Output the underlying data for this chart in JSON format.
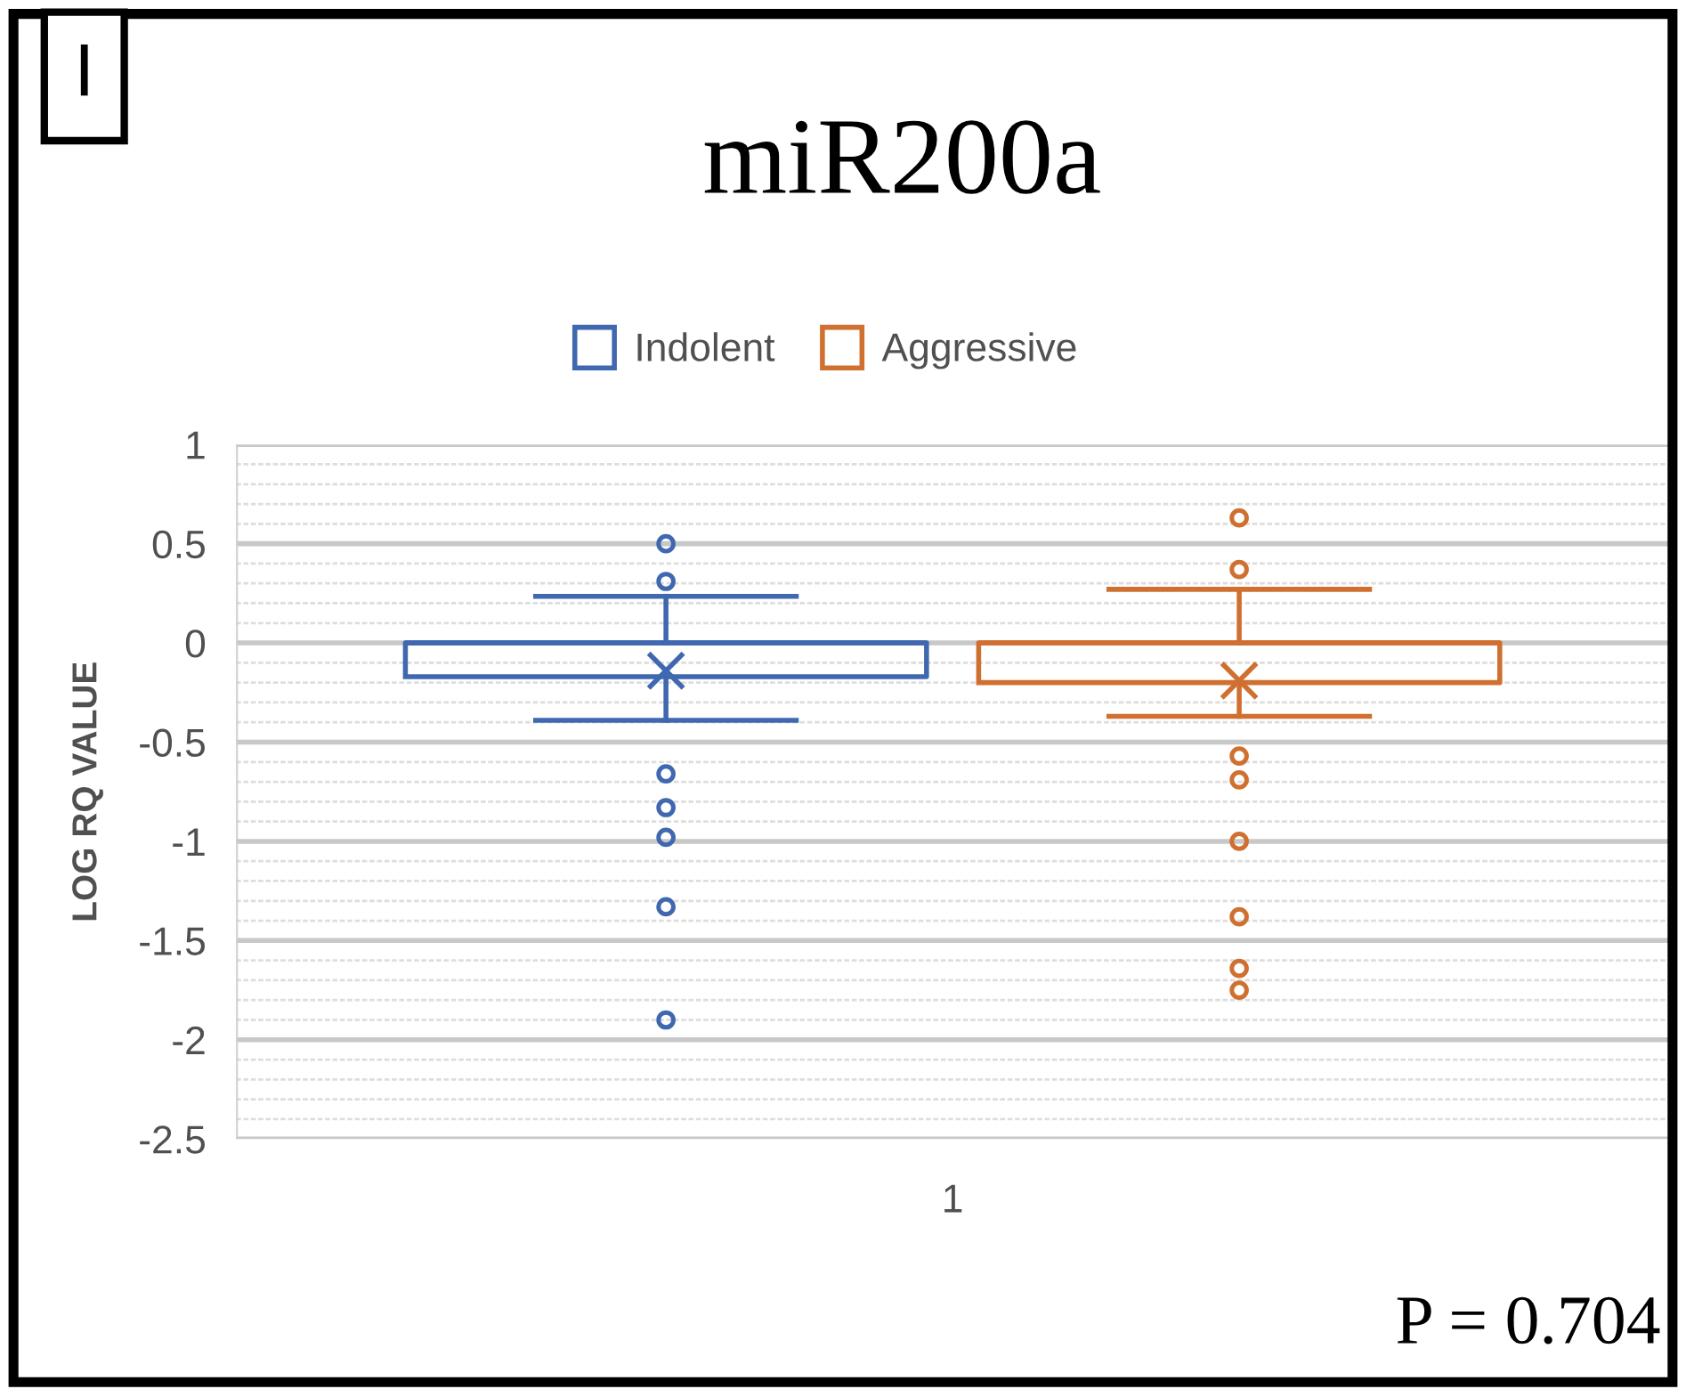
{
  "chart_data": {
    "type": "box",
    "title": "miR200a",
    "ylabel": "LOG RQ VALUE",
    "categories": [
      "1"
    ],
    "series": [
      {
        "name": "Indolent",
        "color": "#4068b0",
        "boxes": [
          {
            "low": -0.39,
            "q1": -0.17,
            "median": 0.0,
            "q3": 0.0,
            "high": 0.235,
            "mean": -0.14,
            "outliers": [
              0.5,
              0.31,
              -0.66,
              -0.83,
              -0.98,
              -1.33,
              -1.9
            ]
          }
        ]
      },
      {
        "name": "Aggressive",
        "color": "#d07030",
        "boxes": [
          {
            "low": -0.37,
            "q1": -0.2,
            "median": 0.0,
            "q3": 0.0,
            "high": 0.27,
            "mean": -0.19,
            "outliers": [
              0.63,
              0.37,
              -0.57,
              -0.69,
              -1.0,
              -1.38,
              -1.64,
              -1.75
            ]
          }
        ]
      }
    ],
    "ylim": [
      -2.5,
      1
    ],
    "yticks": [
      1,
      0.5,
      0,
      -0.5,
      -1,
      -1.5,
      -2,
      -2.5
    ],
    "grid": "y",
    "legend": "top",
    "marker": "circle",
    "annotations": [
      "I",
      "P = 0.704"
    ]
  }
}
